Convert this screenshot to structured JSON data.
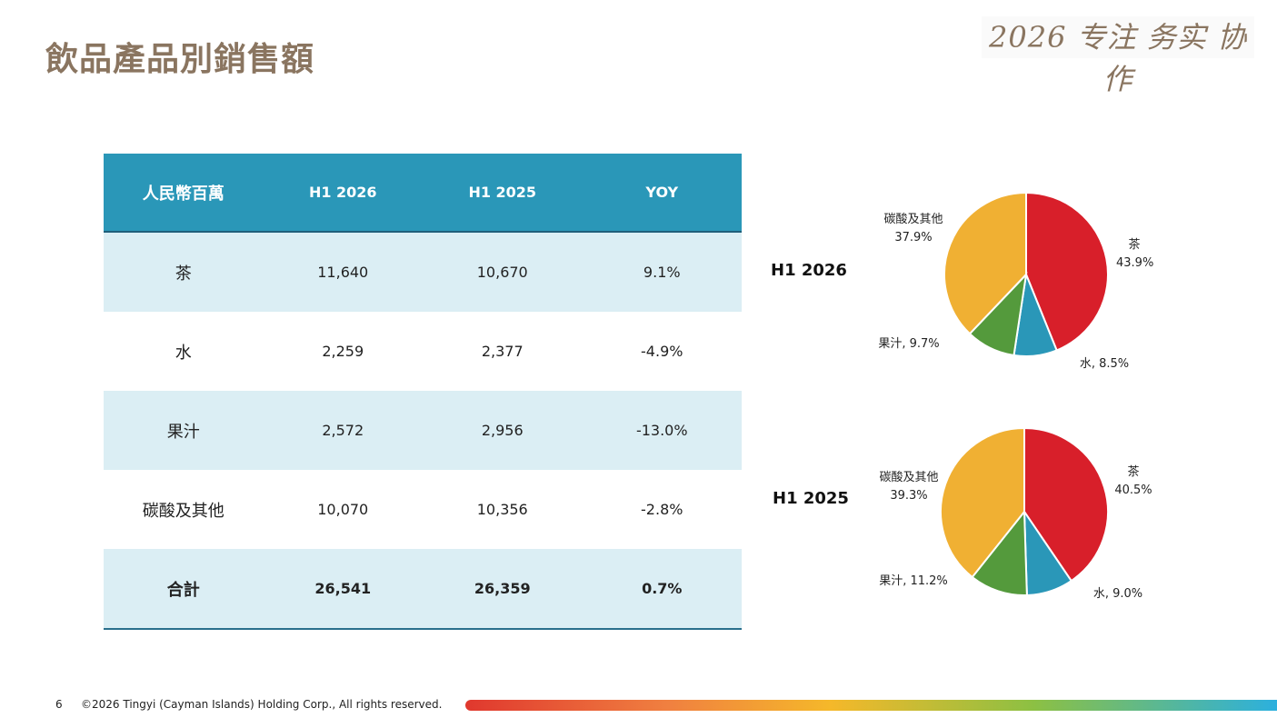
{
  "title": "飲品產品別銷售額",
  "slogan": "2026 专注 务实 协作",
  "table": {
    "headers": [
      "人民幣百萬",
      "H1 2026",
      "H1 2025",
      "YOY"
    ],
    "rows": [
      [
        "茶",
        "11,640",
        "10,670",
        "9.1%"
      ],
      [
        "水",
        "2,259",
        "2,377",
        "-4.9%"
      ],
      [
        "果汁",
        "2,572",
        "2,956",
        "-13.0%"
      ],
      [
        "碳酸及其他",
        "10,070",
        "10,356",
        "-2.8%"
      ],
      [
        "合計",
        "26,541",
        "26,359",
        "0.7%"
      ]
    ]
  },
  "chart_data": [
    {
      "type": "pie",
      "title": "H1 2026",
      "categories": [
        "茶",
        "水",
        "果汁",
        "碳酸及其他"
      ],
      "values": [
        43.9,
        8.5,
        9.7,
        37.9
      ],
      "labels": [
        "茶\n43.9%",
        "水, 8.5%",
        "果汁, 9.7%",
        "碳酸及其他\n37.9%"
      ],
      "colors": [
        "#d81f2a",
        "#2a97b8",
        "#549a3c",
        "#f0b033"
      ]
    },
    {
      "type": "pie",
      "title": "H1 2025",
      "categories": [
        "茶",
        "水",
        "果汁",
        "碳酸及其他"
      ],
      "values": [
        40.5,
        9.0,
        11.2,
        39.3
      ],
      "labels": [
        "茶\n40.5%",
        "水, 9.0%",
        "果汁, 11.2%",
        "碳酸及其他\n39.3%"
      ],
      "colors": [
        "#d81f2a",
        "#2a97b8",
        "#549a3c",
        "#f0b033"
      ]
    }
  ],
  "footer": {
    "page_number": "6",
    "copyright": "©2026 Tingyi (Cayman Islands) Holding Corp., All rights reserved."
  }
}
